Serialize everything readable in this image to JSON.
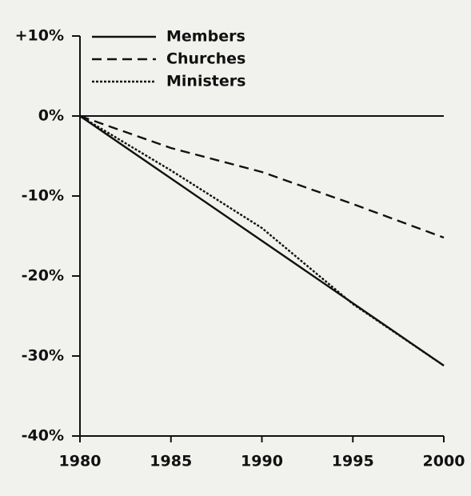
{
  "chart_data": {
    "type": "line",
    "x": [
      1980,
      1985,
      1990,
      1995,
      2000
    ],
    "series": [
      {
        "name": "Members",
        "color": "#111111",
        "dash": "solid",
        "values": [
          0,
          -7.8,
          -15.6,
          -23.4,
          -31.2
        ]
      },
      {
        "name": "Churches",
        "color": "#111111",
        "dash": "dashed",
        "values": [
          0,
          -4,
          -7,
          -11,
          -15.2
        ]
      },
      {
        "name": "Ministers",
        "color": "#111111",
        "dash": "dotted",
        "values": [
          0,
          -6.8,
          -14,
          -23.5,
          -31.2
        ]
      }
    ],
    "xlim": [
      1980,
      2000
    ],
    "xticks": [
      1980,
      1985,
      1990,
      1995,
      2000
    ],
    "ylim": [
      -40,
      10
    ],
    "yticks": [
      {
        "value": 10,
        "label": "+10%"
      },
      {
        "value": 0,
        "label": "0%"
      },
      {
        "value": -10,
        "label": "-10%"
      },
      {
        "value": -20,
        "label": "-20%"
      },
      {
        "value": -30,
        "label": "-30%"
      },
      {
        "value": -40,
        "label": "-40%"
      }
    ],
    "reference_line": 0,
    "legend": "upper left"
  }
}
